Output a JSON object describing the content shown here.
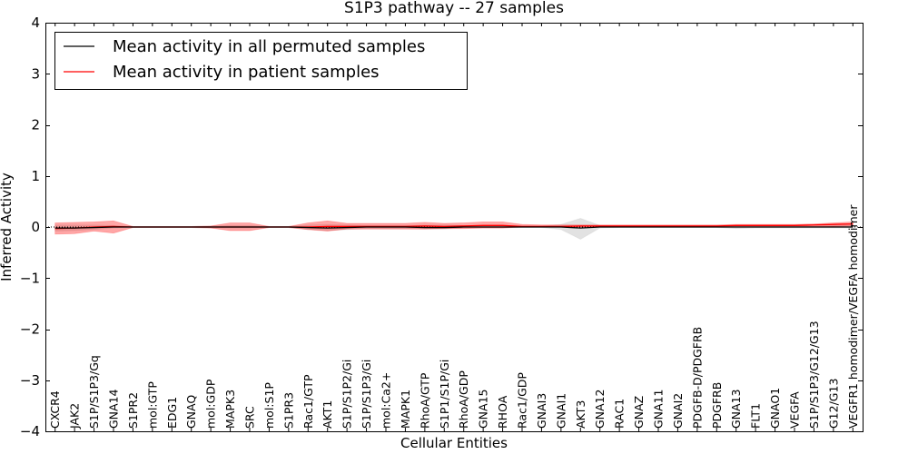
{
  "chart_data": {
    "type": "line",
    "title": "S1P3 pathway -- 27 samples",
    "xlabel": "Cellular Entities",
    "ylabel": "Inferred Activity",
    "ylim": [
      -4,
      4
    ],
    "yticks": [
      -4,
      -3,
      -2,
      -1,
      0,
      1,
      2,
      3,
      4
    ],
    "ytick_labels": [
      "−4",
      "−3",
      "−2",
      "−1",
      "0",
      "1",
      "2",
      "3",
      "4"
    ],
    "grid": false,
    "legend_position": "top-left",
    "categories": [
      "CXCR4",
      "JAK2",
      "S1P/S1P3/Gq",
      "GNA14",
      "S1PR2",
      "mol:GTP",
      "EDG1",
      "GNAQ",
      "mol:GDP",
      "MAPK3",
      "SRC",
      "mol:S1P",
      "S1PR3",
      "Rac1/GTP",
      "AKT1",
      "S1P/S1P2/Gi",
      "S1P/S1P3/Gi",
      "mol:Ca2+",
      "MAPK1",
      "RhoA/GTP",
      "S1P1/S1P/Gi",
      "RhoA/GDP",
      "GNA15",
      "RHOA",
      "Rac1/GDP",
      "GNAI3",
      "GNAI1",
      "AKT3",
      "GNA12",
      "RAC1",
      "GNAZ",
      "GNA11",
      "GNAI2",
      "PDGFB-D/PDGFRB",
      "PDGFRB",
      "GNA13",
      "FLT1",
      "GNAO1",
      "VEGFA",
      "S1P/S1P3/G12/G13",
      "G12/G13",
      "VEGFR1 homodimer/VEGFA homodimer"
    ],
    "series": [
      {
        "name": "Mean activity in all permuted samples",
        "color": "#000000",
        "values": [
          -0.02,
          -0.02,
          -0.01,
          0.0,
          0.0,
          0.0,
          0.0,
          0.0,
          0.0,
          0.0,
          0.0,
          0.0,
          0.0,
          -0.01,
          -0.02,
          -0.01,
          0.0,
          0.0,
          0.0,
          -0.01,
          -0.01,
          0.0,
          0.0,
          0.0,
          0.0,
          0.0,
          0.0,
          -0.02,
          0.0,
          0.0,
          0.0,
          0.0,
          0.0,
          0.0,
          0.0,
          0.0,
          0.0,
          0.0,
          0.0,
          0.0,
          0.0,
          0.0
        ],
        "band_lower": [
          -0.08,
          -0.07,
          -0.05,
          -0.02,
          -0.01,
          -0.01,
          -0.01,
          -0.01,
          -0.02,
          -0.02,
          -0.02,
          -0.01,
          -0.01,
          -0.05,
          -0.07,
          -0.05,
          -0.03,
          -0.03,
          -0.03,
          -0.04,
          -0.04,
          -0.02,
          -0.02,
          -0.02,
          -0.01,
          -0.01,
          -0.05,
          -0.24,
          -0.02,
          -0.01,
          -0.01,
          -0.01,
          -0.01,
          -0.01,
          -0.01,
          -0.03,
          -0.02,
          -0.02,
          -0.02,
          -0.02,
          -0.02,
          -0.02
        ],
        "band_upper": [
          0.04,
          0.04,
          0.04,
          0.03,
          0.01,
          0.01,
          0.01,
          0.01,
          0.02,
          0.03,
          0.03,
          0.01,
          0.01,
          0.04,
          0.05,
          0.04,
          0.03,
          0.03,
          0.03,
          0.04,
          0.04,
          0.03,
          0.03,
          0.03,
          0.02,
          0.02,
          0.05,
          0.17,
          0.03,
          0.02,
          0.02,
          0.02,
          0.02,
          0.02,
          0.02,
          0.03,
          0.02,
          0.02,
          0.02,
          0.02,
          0.03,
          0.04
        ]
      },
      {
        "name": "Mean activity in patient samples",
        "color": "#ff0000",
        "values": [
          -0.03,
          -0.02,
          0.0,
          0.01,
          0.0,
          0.0,
          0.0,
          0.0,
          0.0,
          0.0,
          0.0,
          0.0,
          0.0,
          0.0,
          0.01,
          0.01,
          0.01,
          0.01,
          0.01,
          0.02,
          0.01,
          0.02,
          0.03,
          0.03,
          0.01,
          0.01,
          0.01,
          0.02,
          0.02,
          0.02,
          0.02,
          0.02,
          0.02,
          0.02,
          0.02,
          0.03,
          0.03,
          0.03,
          0.03,
          0.04,
          0.05,
          0.06
        ],
        "band_lower": [
          -0.14,
          -0.13,
          -0.08,
          -0.12,
          -0.01,
          -0.01,
          -0.01,
          -0.01,
          -0.02,
          -0.07,
          -0.07,
          -0.01,
          -0.01,
          -0.05,
          -0.08,
          -0.04,
          -0.04,
          -0.04,
          -0.04,
          -0.04,
          -0.03,
          -0.03,
          -0.02,
          -0.02,
          0.0,
          0.0,
          0.0,
          0.0,
          0.0,
          0.0,
          0.0,
          0.0,
          0.0,
          0.0,
          0.0,
          0.0,
          0.0,
          0.0,
          0.0,
          0.0,
          0.01,
          0.02
        ],
        "band_upper": [
          0.08,
          0.09,
          0.1,
          0.12,
          0.01,
          0.01,
          0.01,
          0.01,
          0.02,
          0.08,
          0.08,
          0.01,
          0.01,
          0.08,
          0.12,
          0.07,
          0.07,
          0.07,
          0.07,
          0.09,
          0.07,
          0.08,
          0.1,
          0.1,
          0.05,
          0.04,
          0.04,
          0.04,
          0.04,
          0.04,
          0.04,
          0.04,
          0.04,
          0.04,
          0.04,
          0.05,
          0.05,
          0.05,
          0.05,
          0.06,
          0.08,
          0.1
        ]
      }
    ],
    "baseline": {
      "value": 0,
      "style": "dotted",
      "color": "#000000"
    },
    "gray_band_color": "#bfbfbf",
    "red_band_color": "#ff0000"
  }
}
